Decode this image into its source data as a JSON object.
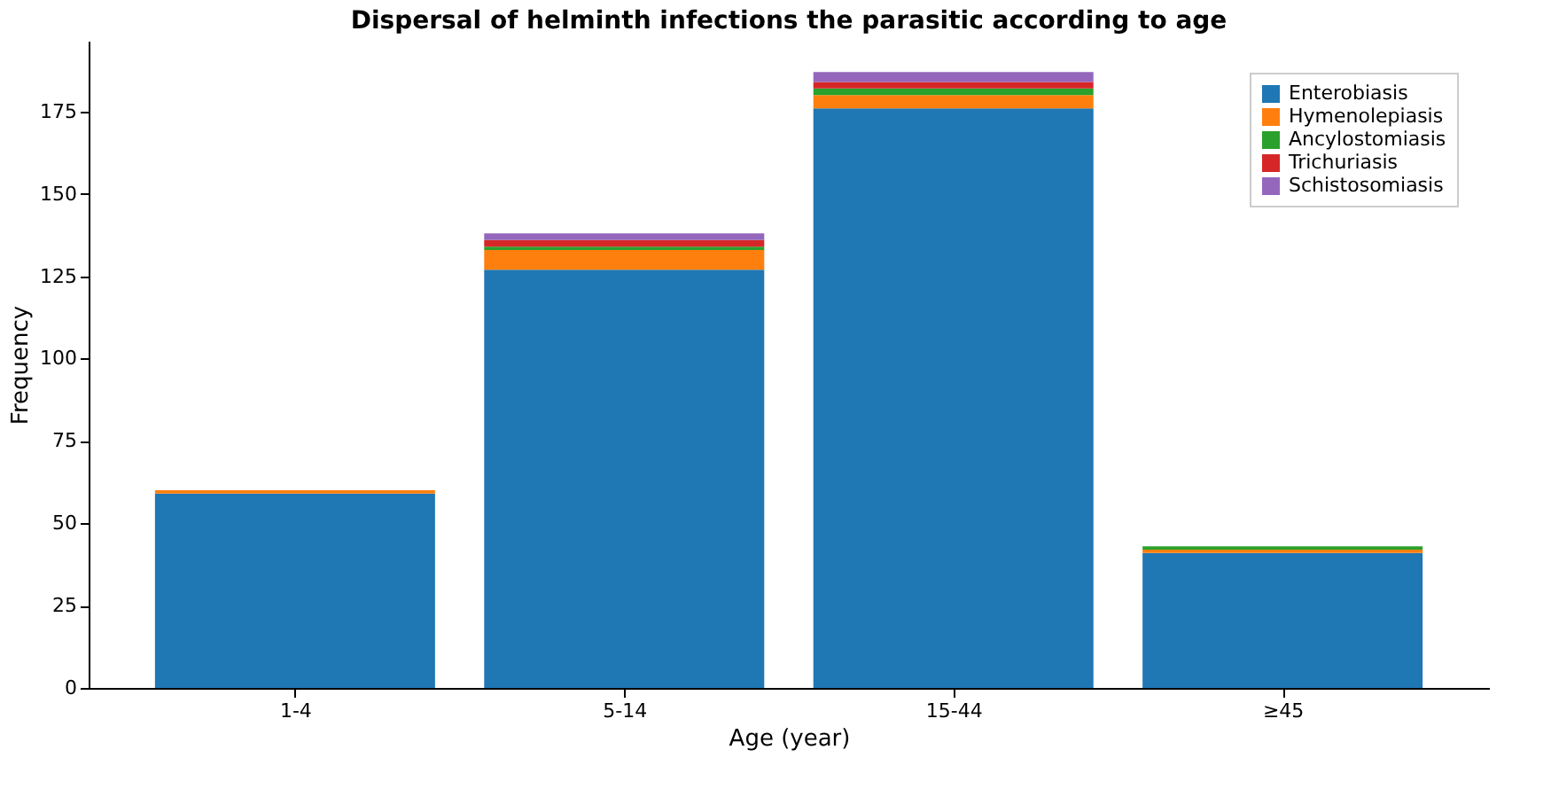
{
  "chart_data": {
    "type": "bar",
    "stacked": true,
    "title": "Dispersal of helminth infections the parasitic according to age",
    "xlabel": "Age (year)",
    "ylabel": "Frequency",
    "categories": [
      "1-4",
      "5-14",
      "15-44",
      "≥45"
    ],
    "series": [
      {
        "name": "Enterobiasis",
        "color": "#1f77b4",
        "values": [
          59,
          127,
          176,
          41
        ]
      },
      {
        "name": "Hymenolepiasis",
        "color": "#ff7f0e",
        "values": [
          1,
          6,
          4,
          1
        ]
      },
      {
        "name": "Ancylostomiasis",
        "color": "#2ca02c",
        "values": [
          0,
          1,
          2,
          1
        ]
      },
      {
        "name": "Trichuriasis",
        "color": "#d62728",
        "values": [
          0,
          2,
          2,
          0
        ]
      },
      {
        "name": "Schistosomiasis",
        "color": "#9467bd",
        "values": [
          0,
          2,
          3,
          0
        ]
      }
    ],
    "ylim": [
      0,
      196.5
    ],
    "yticks": [
      0,
      25,
      50,
      75,
      100,
      125,
      150,
      175
    ],
    "grid": false,
    "legend": "top right"
  }
}
